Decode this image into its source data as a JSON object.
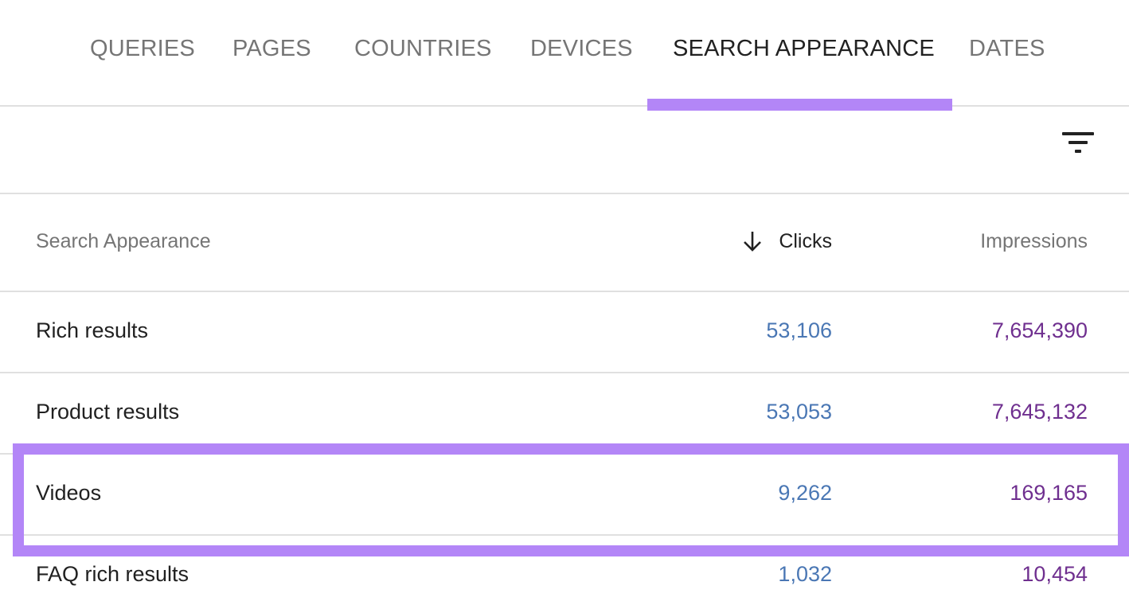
{
  "tabs": [
    {
      "label": "QUERIES",
      "active": false
    },
    {
      "label": "PAGES",
      "active": false
    },
    {
      "label": "COUNTRIES",
      "active": false
    },
    {
      "label": "DEVICES",
      "active": false
    },
    {
      "label": "SEARCH APPEARANCE",
      "active": true
    },
    {
      "label": "DATES",
      "active": false
    }
  ],
  "table": {
    "headers": {
      "dimension": "Search Appearance",
      "clicks": "Clicks",
      "impressions": "Impressions"
    },
    "sort": {
      "column": "clicks",
      "direction": "descending",
      "icon": "arrow-down-icon"
    },
    "rows": [
      {
        "label": "Rich results",
        "clicks": "53,106",
        "impressions": "7,654,390",
        "highlighted": false
      },
      {
        "label": "Product results",
        "clicks": "53,053",
        "impressions": "7,645,132",
        "highlighted": false
      },
      {
        "label": "Videos",
        "clicks": "9,262",
        "impressions": "169,165",
        "highlighted": true
      },
      {
        "label": "FAQ rich results",
        "clicks": "1,032",
        "impressions": "10,454",
        "highlighted": false
      }
    ]
  },
  "icons": {
    "filter": "filter-icon"
  },
  "colors": {
    "accent": "#b386f7",
    "clicks": "#4a77b4",
    "impressions": "#6f2f8f",
    "active_tab": "#212121",
    "inactive_tab": "#757575"
  }
}
